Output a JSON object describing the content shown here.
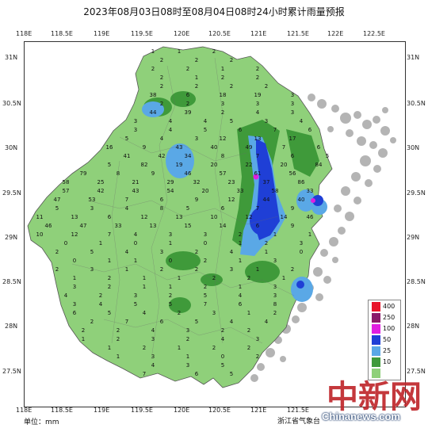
{
  "title": "2023年08月03日08时至08月04日08时24小时累计雨量预报",
  "axes": {
    "lon_labels": [
      "118E",
      "118.5E",
      "119E",
      "119.5E",
      "120E",
      "120.5E",
      "121E",
      "121.5E",
      "122E",
      "122.5E"
    ],
    "lat_labels": [
      "31N",
      "30.5N",
      "30N",
      "29.5N",
      "29N",
      "28.5N",
      "28N",
      "27.5N"
    ]
  },
  "legend": {
    "items": [
      {
        "label": "400",
        "color": "#e8142a"
      },
      {
        "label": "250",
        "color": "#8b1a6a"
      },
      {
        "label": "100",
        "color": "#e01ee0"
      },
      {
        "label": "50",
        "color": "#1f3fd6"
      },
      {
        "label": "25",
        "color": "#5aa8e6"
      },
      {
        "label": "10",
        "color": "#3f9a3a"
      },
      {
        "label": "",
        "color": "#8fd07a"
      }
    ]
  },
  "colors": {
    "light_rain": "#8fd07a",
    "moderate_rain": "#3f9a3a",
    "heavy_rain": "#5aa8e6",
    "rainstorm": "#1f3fd6",
    "heavy_rainstorm": "#e01ee0",
    "outside_echo": "#a8a8a8"
  },
  "footer": {
    "unit": "单位：mm",
    "source": "浙江省气象台"
  },
  "watermark": {
    "cn": "中新网",
    "en": "Chinanews.com"
  },
  "rain_values": [
    "1",
    "1",
    "2",
    "2",
    "2",
    "2",
    "2",
    "2",
    "1",
    "2",
    "2",
    "1",
    "2",
    "2",
    "2",
    "2",
    "2",
    "2",
    "38",
    "6",
    "18",
    "19",
    "3",
    "2",
    "2",
    "3",
    "3",
    "3",
    "44",
    "39",
    "2",
    "4",
    "3",
    "3",
    "4",
    "4",
    "5",
    "3",
    "4",
    "3",
    "4",
    "5",
    "6",
    "7",
    "6",
    "5",
    "4",
    "3",
    "12",
    "13",
    "17",
    "16",
    "9",
    "43",
    "40",
    "49",
    "7",
    "6",
    "41",
    "42",
    "34",
    "8",
    "7",
    "6",
    "5",
    "5",
    "82",
    "19",
    "20",
    "22",
    "20",
    "84",
    "79",
    "8",
    "9",
    "46",
    "57",
    "61",
    "56",
    "58",
    "25",
    "21",
    "29",
    "32",
    "23",
    "37",
    "86",
    "57",
    "42",
    "43",
    "54",
    "20",
    "33",
    "58",
    "33",
    "47",
    "53",
    "7",
    "6",
    "9",
    "12",
    "44",
    "40",
    "5",
    "3",
    "4",
    "8",
    "5",
    "6",
    "7",
    "9",
    "11",
    "13",
    "6",
    "12",
    "13",
    "10",
    "12",
    "14",
    "46",
    "46",
    "47",
    "33",
    "13",
    "15",
    "14",
    "6",
    "9",
    "10",
    "12",
    "7",
    "4",
    "3",
    "3",
    "2",
    "1",
    "1",
    "0",
    "1",
    "0",
    "1",
    "0",
    "1",
    "2",
    "3",
    "2",
    "5",
    "4",
    "3",
    "2",
    "4",
    "1",
    "0",
    "0",
    "1",
    "1",
    "0",
    "2",
    "1",
    "3",
    "2",
    "3",
    "1",
    "2",
    "2",
    "3",
    "1",
    "2",
    "1",
    "2",
    "1",
    "1",
    "2",
    "2",
    "1",
    "3",
    "2",
    "1",
    "1",
    "2",
    "1",
    "3",
    "4",
    "2",
    "3",
    "2",
    "5",
    "4",
    "3",
    "3",
    "4",
    "5",
    "5",
    "7",
    "6",
    "8",
    "6",
    "5",
    "4",
    "2",
    "3",
    "1",
    "2",
    "2",
    "7",
    "6",
    "5",
    "4",
    "4",
    "2",
    "2",
    "4",
    "3",
    "2",
    "2",
    "1",
    "2",
    "3",
    "2",
    "4",
    "3",
    "1",
    "2",
    "1",
    "2",
    "2",
    "1",
    "3",
    "1",
    "0",
    "2",
    "4",
    "3",
    "5",
    "7",
    "6",
    "5"
  ]
}
